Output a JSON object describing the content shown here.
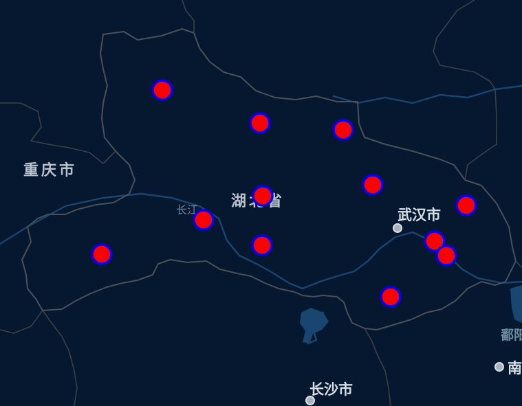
{
  "map": {
    "region_labels": [
      {
        "id": "chongqing",
        "text": "重庆市"
      },
      {
        "id": "hubei",
        "text": "湖北省"
      }
    ],
    "city_labels": [
      {
        "id": "wuhan",
        "text": "武汉市"
      },
      {
        "id": "changsha",
        "text": "长沙市"
      }
    ],
    "partial_labels": [
      {
        "id": "nanchang",
        "text": "南"
      },
      {
        "id": "poyang",
        "text": "鄱阳"
      }
    ],
    "river_label": "长江",
    "colors": {
      "background": "#061830",
      "border": "#4a5058",
      "river": "#184670",
      "marker_fill": "#ff0000",
      "marker_stroke": "#0000ff"
    },
    "marker_count": 13
  }
}
